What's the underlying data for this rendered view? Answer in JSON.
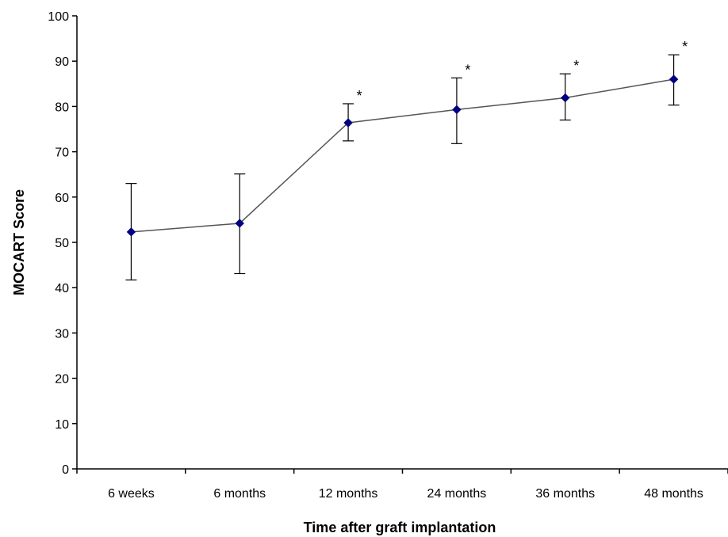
{
  "chart_data": {
    "type": "line",
    "title": "",
    "xlabel": "Time after graft implantation",
    "ylabel": "MOCART Score",
    "ylim": [
      0,
      100
    ],
    "yticks": [
      "0",
      "10",
      "20",
      "30",
      "40",
      "50",
      "60",
      "70",
      "80",
      "90",
      "100"
    ],
    "categories": [
      "6 weeks",
      "6 months",
      "12 months",
      "24 months",
      "36 months",
      "48 months"
    ],
    "series": [
      {
        "values": [
          52.3,
          54.2,
          76.4,
          79.3,
          81.9,
          86.0
        ],
        "error_low": [
          41.7,
          43.1,
          72.4,
          71.8,
          77.0,
          80.3
        ],
        "error_high": [
          63.0,
          65.1,
          80.6,
          86.3,
          87.2,
          91.4
        ],
        "color": "#000080"
      }
    ],
    "annotations": [
      "",
      "",
      "*",
      "*",
      "*",
      "*"
    ],
    "grid": false,
    "legend": "none",
    "line_color": "#555555",
    "axis_color": "#000000"
  }
}
